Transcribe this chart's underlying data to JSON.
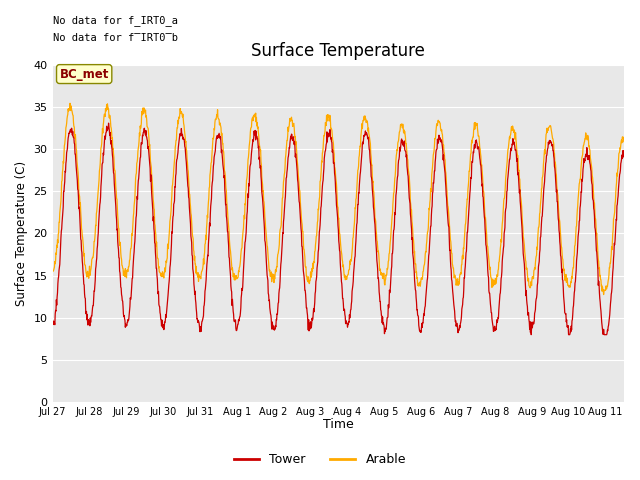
{
  "title": "Surface Temperature",
  "ylabel": "Surface Temperature (C)",
  "xlabel": "Time",
  "annotation_line1": "No data for f_IRT0_a",
  "annotation_line2": "No data for f̅IRT0̅b",
  "bc_met_label": "BC_met",
  "tower_color": "#cc0000",
  "arable_color": "#ffaa00",
  "ylim": [
    0,
    40
  ],
  "yticks": [
    0,
    5,
    10,
    15,
    20,
    25,
    30,
    35,
    40
  ],
  "bg_color": "#e8e8e8",
  "fig_bg_color": "#ffffff",
  "x_tick_labels": [
    "Jul 27",
    "Jul 28",
    "Jul 29",
    "Jul 30",
    "Jul 31",
    "Aug 1",
    "Aug 2",
    "Aug 3",
    "Aug 4",
    "Aug 5",
    "Aug 6",
    "Aug 7",
    "Aug 8",
    "Aug 9",
    "Aug 10",
    "Aug 11"
  ],
  "n_days": 15.5,
  "legend_entries": [
    "Tower",
    "Arable"
  ]
}
